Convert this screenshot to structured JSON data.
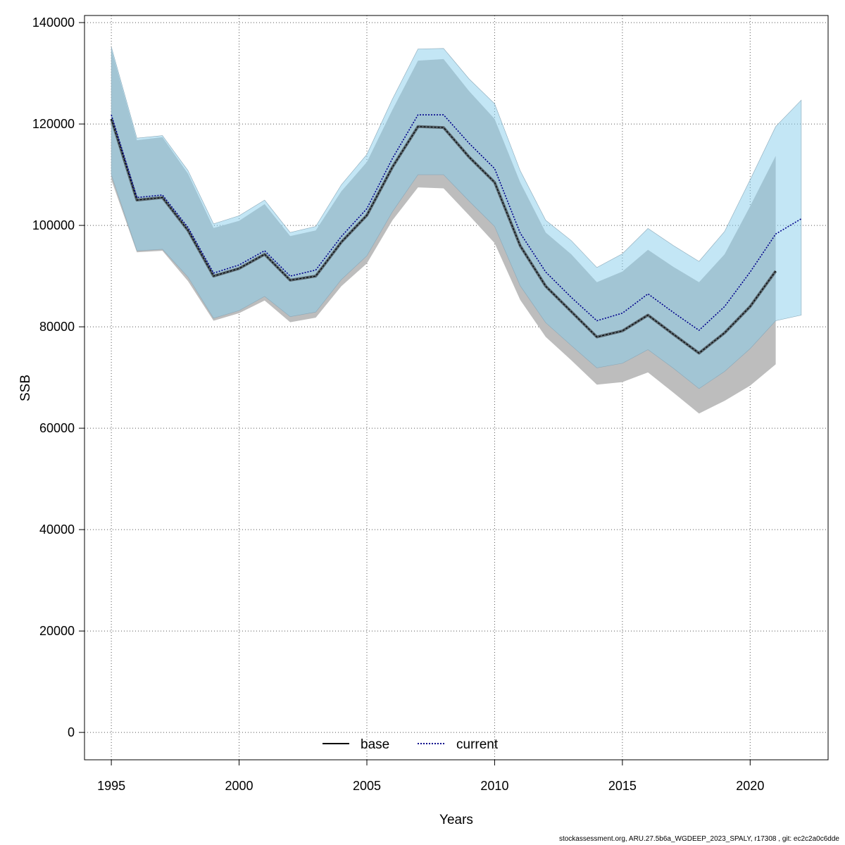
{
  "chart_data": {
    "type": "line",
    "xlabel": "Years",
    "ylabel": "SSB",
    "xlim": [
      1993.95,
      2023.05
    ],
    "ylim": [
      -5400,
      141400
    ],
    "x_ticks": [
      1995,
      2000,
      2005,
      2010,
      2015,
      2020
    ],
    "y_ticks": [
      0,
      20000,
      40000,
      60000,
      80000,
      100000,
      120000,
      140000
    ],
    "grid": true,
    "legend_position": "bottom",
    "colors": {
      "base_fill": "#bdbdbd",
      "current_fill": "#87ceeb",
      "base_line": "#000000",
      "current_line": "#00008b"
    },
    "series": [
      {
        "name": "base",
        "line_style": "solid",
        "x": [
          1995,
          1996,
          1997,
          1998,
          1999,
          2000,
          2001,
          2002,
          2003,
          2004,
          2005,
          2006,
          2007,
          2008,
          2009,
          2010,
          2011,
          2012,
          2013,
          2014,
          2015,
          2016,
          2017,
          2018,
          2019,
          2020,
          2021
        ],
        "values": [
          121000,
          105000,
          105500,
          99000,
          90000,
          91500,
          94300,
          89200,
          90000,
          96700,
          102000,
          111500,
          119500,
          119300,
          113500,
          108500,
          96000,
          88000,
          83000,
          78000,
          79200,
          82300,
          78500,
          74800,
          78800,
          84000,
          91000
        ],
        "lower": [
          109000,
          94700,
          95000,
          89000,
          81200,
          82700,
          85200,
          80900,
          81800,
          88000,
          92500,
          101000,
          107500,
          107300,
          102000,
          96500,
          85300,
          78000,
          73400,
          68600,
          69100,
          71000,
          67000,
          62900,
          65400,
          68400,
          72600
        ],
        "upper": [
          134800,
          116800,
          117400,
          110200,
          99500,
          100900,
          104200,
          97900,
          99000,
          106700,
          112500,
          122800,
          132500,
          132800,
          126500,
          121000,
          108500,
          98600,
          94300,
          88800,
          90900,
          95200,
          91800,
          88800,
          94300,
          103800,
          113700
        ]
      },
      {
        "name": "current",
        "line_style": "dotted",
        "x": [
          1995,
          1996,
          1997,
          1998,
          1999,
          2000,
          2001,
          2002,
          2003,
          2004,
          2005,
          2006,
          2007,
          2008,
          2009,
          2010,
          2011,
          2012,
          2013,
          2014,
          2015,
          2016,
          2017,
          2018,
          2019,
          2020,
          2021,
          2022
        ],
        "values": [
          121800,
          105500,
          106000,
          99600,
          90600,
          92200,
          95000,
          90000,
          91200,
          97800,
          103300,
          113200,
          121800,
          121800,
          116200,
          111200,
          98500,
          90800,
          85800,
          81200,
          82700,
          86500,
          82800,
          79300,
          84000,
          90800,
          98300,
          101300
        ],
        "lower": [
          110000,
          95000,
          95300,
          89800,
          81700,
          83200,
          86000,
          82000,
          82900,
          89300,
          94000,
          102700,
          110000,
          110000,
          104800,
          99800,
          88100,
          80800,
          76300,
          71900,
          72800,
          75500,
          71800,
          67800,
          71200,
          75700,
          81200,
          82300
        ],
        "upper": [
          135200,
          117200,
          117700,
          110800,
          100300,
          101900,
          105000,
          98600,
          99800,
          108000,
          114000,
          124900,
          134800,
          134900,
          128900,
          124000,
          110800,
          101000,
          97000,
          91700,
          94400,
          99400,
          96000,
          92900,
          98800,
          109000,
          119500,
          124700
        ]
      }
    ]
  },
  "legend": {
    "base_label": "base",
    "current_label": "current"
  },
  "footer_text": "stockassessment.org, ARU.27.5b6a_WGDEEP_2023_SPALY, r17308 , git: ec2c2a0c6dde"
}
